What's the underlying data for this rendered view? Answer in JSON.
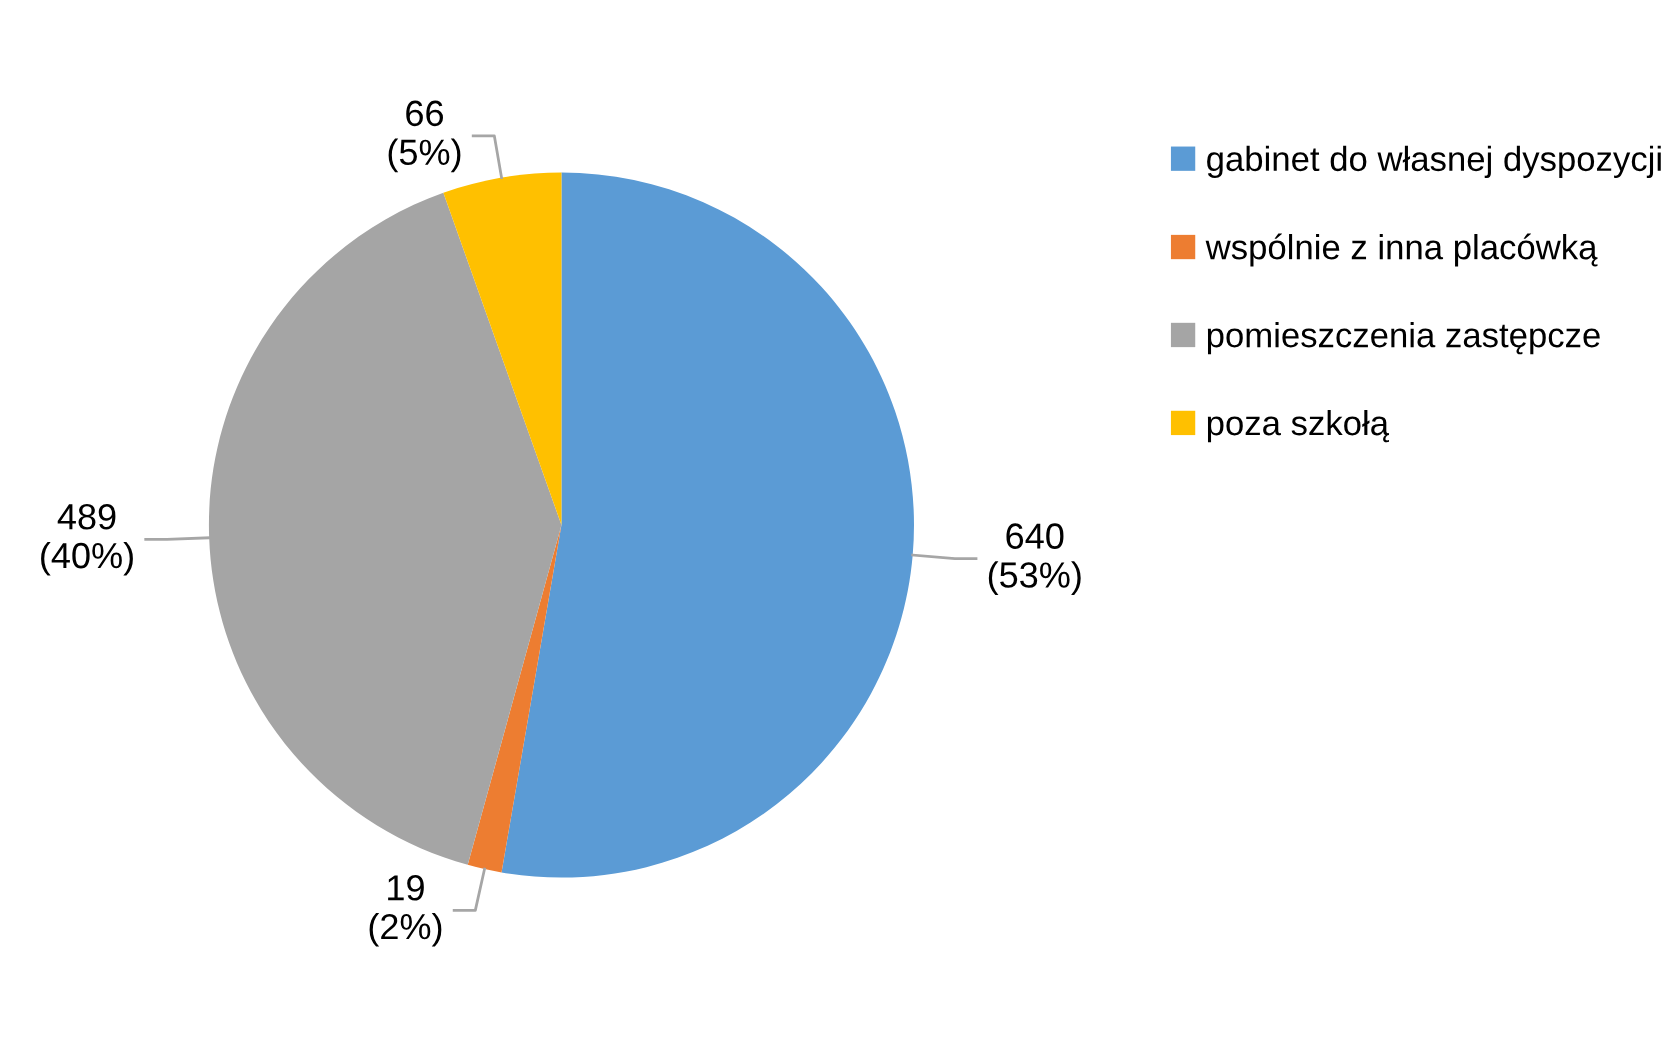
{
  "chart_data": {
    "type": "pie",
    "categories": [
      "gabinet do własnej dyspozycji",
      "wspólnie z inna placówką",
      "pomieszczenia zastępcze",
      "poza szkołą"
    ],
    "values": [
      640,
      19,
      489,
      66
    ],
    "colors": [
      "#5b9bd5",
      "#ed7d31",
      "#a5a5a5",
      "#ffc000"
    ],
    "value_labels": [
      "640\n(53%)",
      "19\n(2%)",
      "489\n(40%)",
      "66\n(5%)"
    ],
    "legend": "right"
  }
}
